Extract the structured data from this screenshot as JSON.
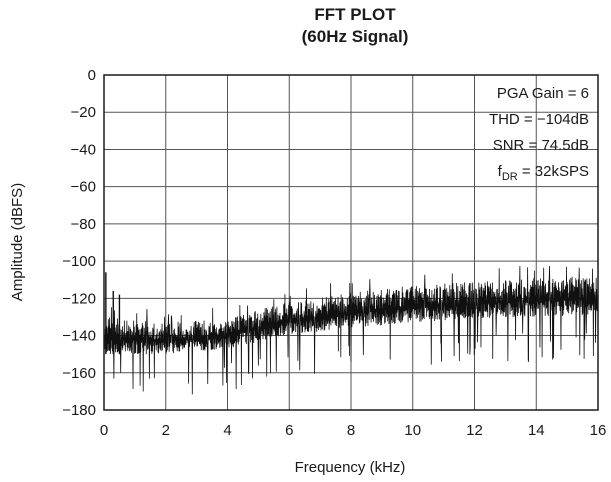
{
  "chart_data": {
    "type": "line",
    "title": "FFT PLOT",
    "subtitle": "(60Hz Signal)",
    "xlabel": "Frequency (kHz)",
    "ylabel": "Amplitude (dBFS)",
    "xlim": [
      0,
      16
    ],
    "ylim": [
      -180,
      0
    ],
    "x_ticks": [
      "0",
      "2",
      "4",
      "6",
      "8",
      "10",
      "12",
      "14",
      "16"
    ],
    "y_ticks": [
      "0",
      "−20",
      "−40",
      "−60",
      "−80",
      "−100",
      "−120",
      "−140",
      "−160",
      "−180"
    ],
    "grid": true,
    "annotations": [
      {
        "text": "PGA Gain = 6"
      },
      {
        "text": "THD = −104dB"
      },
      {
        "text": "SNR = 74.5dB"
      },
      {
        "text_main": "f",
        "text_sub": "DR",
        "text_rest": " = 32kSPS"
      }
    ],
    "series": [
      {
        "color": "#111111",
        "note_floor_dbfs_upper_envelope": [
          [
            0,
            -130
          ],
          [
            2,
            -133
          ],
          [
            4,
            -130
          ],
          [
            6,
            -122
          ],
          [
            8,
            -117
          ],
          [
            10,
            -113
          ],
          [
            12,
            -111
          ],
          [
            14,
            -109
          ],
          [
            16,
            -108
          ]
        ],
        "floor_dbfs_lower_envelope": [
          [
            0,
            -150
          ],
          [
            2,
            -150
          ],
          [
            4,
            -147
          ],
          [
            6,
            -140
          ],
          [
            8,
            -136
          ],
          [
            10,
            -133
          ],
          [
            12,
            -131
          ],
          [
            14,
            -130
          ],
          [
            16,
            -129
          ]
        ],
        "spikes": [
          {
            "x": 0.06,
            "y": -106
          },
          {
            "x": 0.3,
            "y": -116
          },
          {
            "x": 0.5,
            "y": -118
          }
        ]
      }
    ]
  }
}
